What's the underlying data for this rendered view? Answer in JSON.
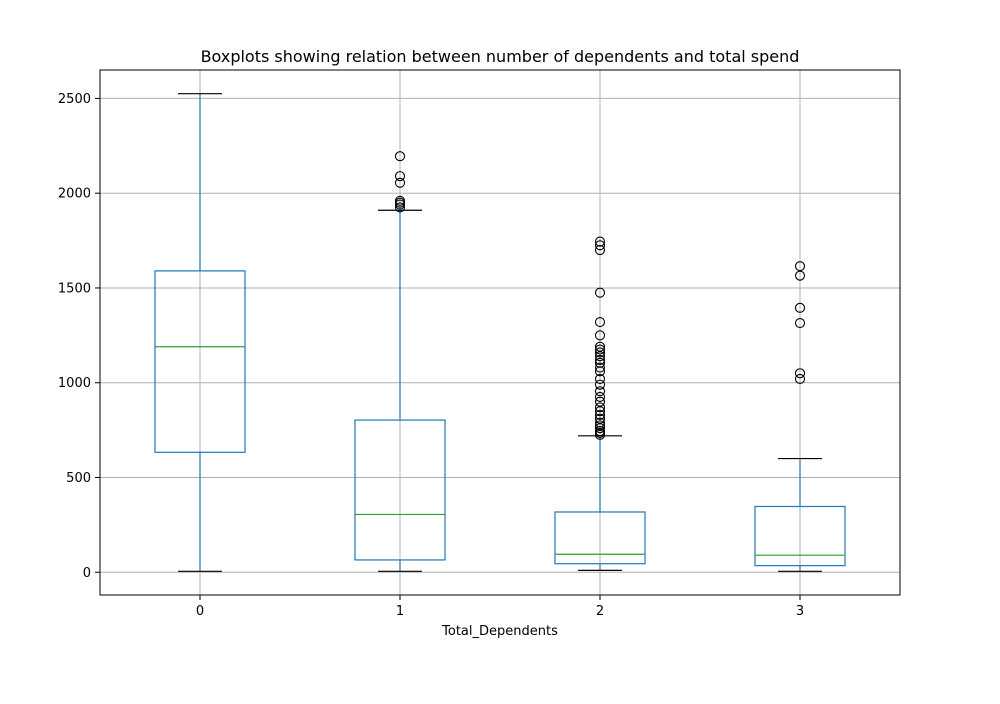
{
  "chart_data": {
    "type": "box",
    "title": "Boxplots showing relation between number of dependents and total spend",
    "xlabel": "Total_Dependents",
    "ylabel": "",
    "categories": [
      "0",
      "1",
      "2",
      "3"
    ],
    "ylim": [
      -120,
      2650
    ],
    "yticks": [
      0,
      500,
      1000,
      1500,
      2000,
      2500
    ],
    "grid": true,
    "colors": {
      "box": "#1f77b4",
      "median": "#2ca02c",
      "whisker_cap": "#000000",
      "grid": "#b0b0b0",
      "outlier": "#000000"
    },
    "boxes": [
      {
        "category": "0",
        "whisker_low": 5,
        "q1": 633,
        "median": 1190,
        "q3": 1590,
        "whisker_high": 2525,
        "outliers": []
      },
      {
        "category": "1",
        "whisker_low": 5,
        "q1": 65,
        "median": 305,
        "q3": 803,
        "whisker_high": 1910,
        "outliers": [
          1925,
          1940,
          1950,
          1960,
          2055,
          2090,
          2195
        ]
      },
      {
        "category": "2",
        "whisker_low": 10,
        "q1": 45,
        "median": 95,
        "q3": 318,
        "whisker_high": 720,
        "outliers": [
          725,
          735,
          745,
          760,
          775,
          790,
          810,
          830,
          850,
          870,
          900,
          925,
          955,
          990,
          1020,
          1060,
          1080,
          1105,
          1120,
          1140,
          1160,
          1175,
          1190,
          1250,
          1320,
          1475,
          1700,
          1725,
          1745
        ]
      },
      {
        "category": "3",
        "whisker_low": 5,
        "q1": 35,
        "median": 90,
        "q3": 347,
        "whisker_high": 600,
        "outliers": [
          1020,
          1050,
          1315,
          1395,
          1565,
          1615
        ]
      }
    ]
  }
}
